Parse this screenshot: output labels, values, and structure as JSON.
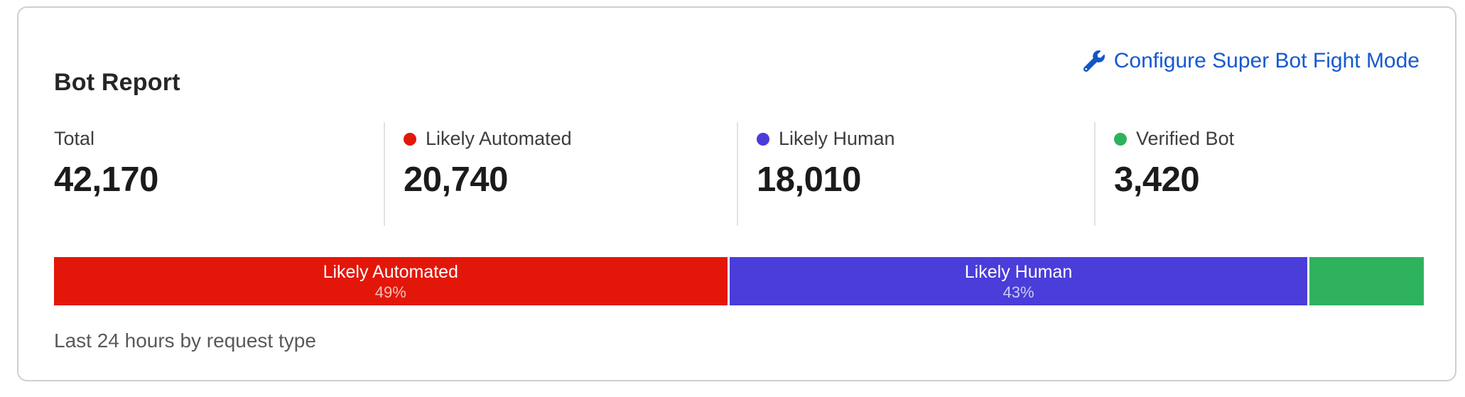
{
  "card": {
    "title": "Bot Report",
    "configure_link": {
      "label": "Configure Super Bot Fight Mode",
      "color": "#1659cf",
      "icon": "wrench-icon"
    },
    "caption": "Last 24 hours by request type"
  },
  "stats": [
    {
      "label": "Total",
      "value": "42,170",
      "dot_color": null
    },
    {
      "label": "Likely Automated",
      "value": "20,740",
      "dot_color": "#e31709"
    },
    {
      "label": "Likely Human",
      "value": "18,010",
      "dot_color": "#4a3dd9"
    },
    {
      "label": "Verified Bot",
      "value": "3,420",
      "dot_color": "#2eb25e"
    }
  ],
  "chart_data": {
    "type": "bar",
    "stacked": true,
    "orientation": "horizontal",
    "title": "Bot Report",
    "caption": "Last 24 hours by request type",
    "total": 42170,
    "segments": [
      {
        "label": "Likely Automated",
        "percent_label": "49%",
        "percent": 49,
        "value": 20740,
        "color": "#e31709",
        "width_pct": 49.3
      },
      {
        "label": "Likely Human",
        "percent_label": "43%",
        "percent": 43,
        "value": 18010,
        "color": "#4a3dd9",
        "width_pct": 42.35
      },
      {
        "label": "",
        "percent_label": "",
        "percent": 8,
        "value": 3420,
        "color": "#2eb25e",
        "width_pct": 8.35
      }
    ]
  },
  "colors": {
    "likely_automated": "#e31709",
    "likely_human": "#4a3dd9",
    "verified_bot": "#2eb25e",
    "link_blue": "#1659cf",
    "card_border": "#cfcfcf"
  }
}
